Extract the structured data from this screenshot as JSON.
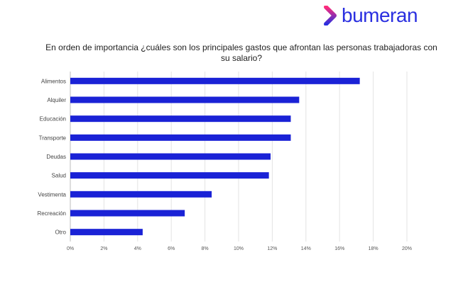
{
  "brand": {
    "name": "bumeran",
    "colors": {
      "text": "#2a2fe0",
      "mark_top": "#ff2b7a",
      "mark_bottom": "#2a2fe0"
    }
  },
  "chart_data": {
    "type": "bar",
    "orientation": "horizontal",
    "title": "En orden de importancia ¿cuáles son los principales gastos que afrontan las personas trabajadoras con su salario?",
    "categories": [
      "Alimentos",
      "Alquiler",
      "Educación",
      "Transporte",
      "Deudas",
      "Salud",
      "Vestimenta",
      "Recreación",
      "Otro"
    ],
    "values": [
      17.2,
      13.6,
      13.1,
      13.1,
      11.9,
      11.8,
      8.4,
      6.8,
      4.3
    ],
    "xlim": [
      0,
      20
    ],
    "xticks": [
      "0%",
      "2%",
      "4%",
      "6%",
      "8%",
      "10%",
      "12%",
      "14%",
      "16%",
      "18%",
      "20%"
    ],
    "grid": true,
    "bar_color": "#1a22d6"
  }
}
